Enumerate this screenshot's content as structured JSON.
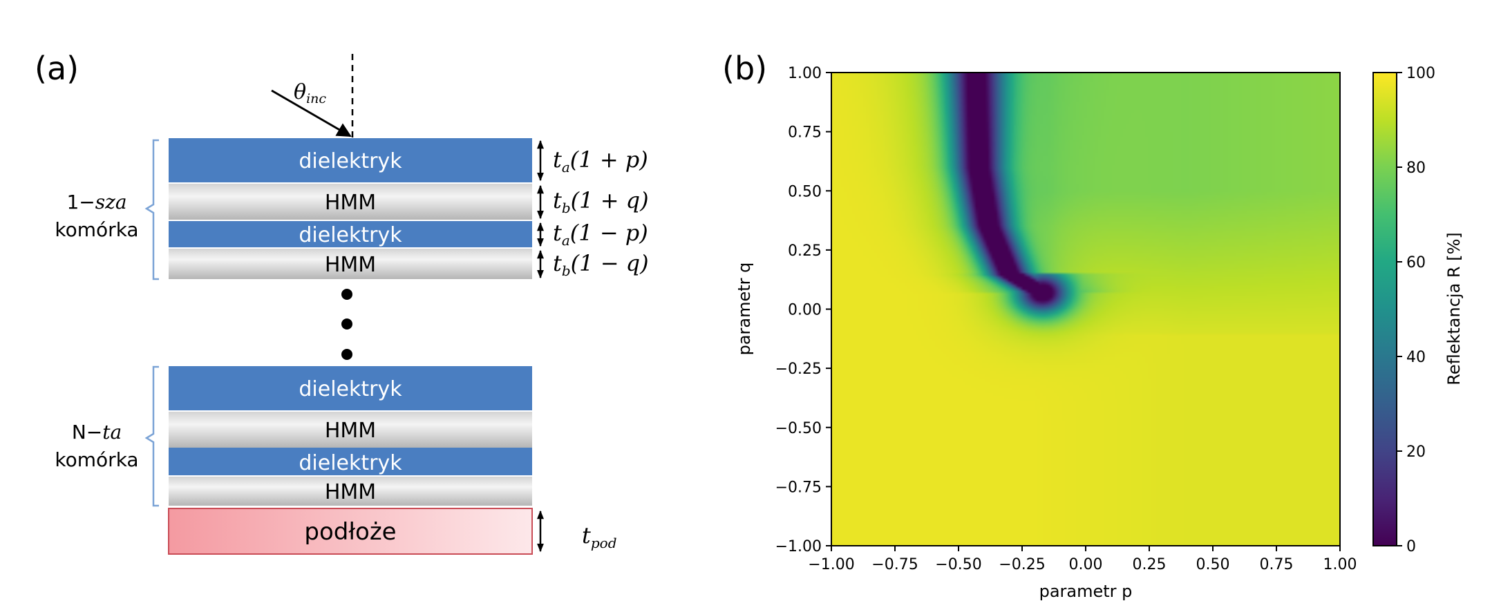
{
  "panel_a": {
    "label": "(a)",
    "theta_symbol": "θ",
    "theta_subscript": "inc",
    "layers_top": [
      {
        "text": "dielektryk",
        "kind": "dielectric"
      },
      {
        "text": "HMM",
        "kind": "hmm"
      },
      {
        "text": "dielektryk",
        "kind": "dielectric"
      },
      {
        "text": "HMM",
        "kind": "hmm"
      }
    ],
    "layers_bottom": [
      {
        "text": "dielektryk",
        "kind": "dielectric"
      },
      {
        "text": "HMM",
        "kind": "hmm"
      },
      {
        "text": "dielektryk",
        "kind": "dielectric"
      },
      {
        "text": "HMM",
        "kind": "hmm"
      }
    ],
    "substrate": "podłoże",
    "thickness_labels": [
      {
        "t": "t",
        "sub": "a",
        "expr": "(1 + p)"
      },
      {
        "t": "t",
        "sub": "b",
        "expr": "(1 + q)"
      },
      {
        "t": "t",
        "sub": "a",
        "expr": "(1 − p)"
      },
      {
        "t": "t",
        "sub": "b",
        "expr": "(1 − q)"
      }
    ],
    "substrate_thickness": {
      "t": "t",
      "sub": "pod"
    },
    "cell_first": {
      "prefix": "1−",
      "suffix": "sza",
      "line2": "komórka"
    },
    "cell_last": {
      "prefix": "N−",
      "suffix": "ta",
      "line2": "komórka"
    },
    "colors": {
      "dielectric": "#4a7ec1",
      "hmm_light": "#f2f2f2",
      "hmm_dark": "#b8b8b8",
      "substrate_left": "#f4a0a6",
      "substrate_right": "#fde4e6",
      "brace": "#7ba3d6"
    }
  },
  "chart_data": {
    "panel_label": "(b)",
    "type": "heatmap",
    "xlabel": "parametr p",
    "ylabel": "parametr q",
    "xlim": [
      -1.0,
      1.0
    ],
    "ylim": [
      -1.0,
      1.0
    ],
    "xticks": [
      "−1.00",
      "−0.75",
      "−0.50",
      "−0.25",
      "0.00",
      "0.25",
      "0.50",
      "0.75",
      "1.00"
    ],
    "yticks": [
      "1.00",
      "0.75",
      "0.50",
      "0.25",
      "0.00",
      "−0.25",
      "−0.50",
      "−0.75",
      "−1.00"
    ],
    "colorbar": {
      "label": "Reflektancja R [%]",
      "range": [
        0,
        100
      ],
      "ticks": [
        "100",
        "80",
        "60",
        "40",
        "20",
        "0"
      ],
      "colormap": "viridis"
    },
    "features": {
      "background_reflectance": 97,
      "right_side_reflectance": 86,
      "minimum": {
        "p": -0.17,
        "q": 0.07,
        "R": 0
      },
      "dip_path": {
        "p": [
          -0.43,
          -0.42,
          -0.38,
          -0.3,
          -0.17
        ],
        "q": [
          1.0,
          0.6,
          0.35,
          0.15,
          0.07
        ]
      }
    }
  }
}
